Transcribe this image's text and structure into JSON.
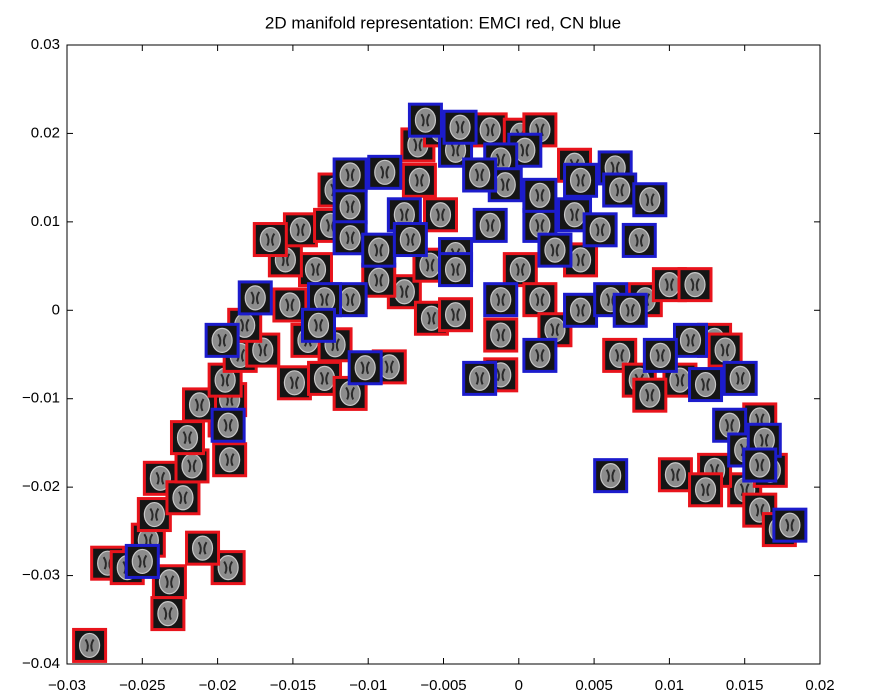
{
  "chart_data": {
    "type": "scatter",
    "title": "2D manifold representation: EMCI red, CN blue",
    "xlim": [
      -0.03,
      0.02
    ],
    "ylim": [
      -0.04,
      0.03
    ],
    "xticks": [
      {
        "value": -0.03,
        "label": "−0.03"
      },
      {
        "value": -0.025,
        "label": "−0.025"
      },
      {
        "value": -0.02,
        "label": "−0.02"
      },
      {
        "value": -0.015,
        "label": "−0.015"
      },
      {
        "value": -0.01,
        "label": "−0.01"
      },
      {
        "value": -0.005,
        "label": "−0.005"
      },
      0,
      0.005,
      0.01,
      0.015,
      0.02
    ],
    "yticks": [
      {
        "value": -0.04,
        "label": "−0.04"
      },
      {
        "value": -0.03,
        "label": "−0.03"
      },
      {
        "value": -0.02,
        "label": "−0.02"
      },
      {
        "value": -0.01,
        "label": "−0.01"
      },
      0,
      0.01,
      0.02,
      0.03
    ],
    "series": [
      {
        "color": "#e8141c",
        "x": [
          -0.0285,
          -0.0273,
          -0.026,
          -0.0232,
          -0.0233,
          -0.0193,
          -0.021,
          -0.0246,
          -0.0242,
          -0.0238,
          -0.0223,
          -0.0217,
          -0.022,
          -0.0192,
          -0.0195,
          -0.0192,
          -0.0212,
          -0.0195,
          -0.0185,
          -0.017,
          -0.0182,
          -0.0149,
          -0.0129,
          -0.0112,
          -0.0086,
          -0.0076,
          -0.0093,
          -0.0152,
          -0.0135,
          -0.0155,
          -0.0145,
          -0.0125,
          -0.0122,
          -0.0052,
          -0.0066,
          -0.0067,
          -0.0052,
          -0.0019,
          0.0001,
          0.0014,
          -0.0059,
          -0.0058,
          -0.0042,
          -0.0012,
          -0.0012,
          0.0001,
          0.0014,
          0.0024,
          0.0037,
          0.0041,
          0.0084,
          0.01,
          0.0117,
          0.013,
          0.0067,
          0.008,
          0.0107,
          0.0087,
          0.0137,
          0.015,
          0.016,
          0.0173,
          0.013,
          0.0104,
          0.0124,
          -0.014,
          -0.0165,
          0.016,
          0.0167,
          -0.0122
        ],
        "y": [
          -0.0379,
          -0.0286,
          -0.0291,
          -0.0307,
          -0.0343,
          -0.0291,
          -0.0269,
          -0.026,
          -0.0231,
          -0.019,
          -0.0212,
          -0.0176,
          -0.0144,
          -0.0169,
          -0.0124,
          -0.0101,
          -0.0107,
          -0.0079,
          -0.0051,
          -0.0045,
          -0.0017,
          -0.0082,
          -0.0077,
          -0.0094,
          -0.0064,
          0.0021,
          0.0034,
          0.0006,
          0.0046,
          0.0057,
          0.0091,
          0.0096,
          0.0136,
          0.0108,
          0.0147,
          0.0187,
          0.0204,
          0.0204,
          0.0198,
          0.0204,
          0.0051,
          -0.0009,
          -0.0005,
          -0.0028,
          -0.0073,
          0.0046,
          0.0012,
          -0.0022,
          0.0164,
          0.0057,
          0.0012,
          0.0029,
          0.0029,
          -0.0034,
          -0.0051,
          -0.0079,
          -0.0079,
          -0.0096,
          -0.0045,
          -0.0203,
          -0.0226,
          -0.0248,
          -0.0181,
          -0.0186,
          -0.0203,
          -0.0034,
          0.008,
          -0.0124,
          -0.0181,
          -0.0039
        ]
      },
      {
        "color": "#1c1ccc",
        "x": [
          -0.025,
          -0.0197,
          -0.0175,
          -0.0193,
          -0.0102,
          -0.0112,
          -0.0129,
          -0.0133,
          -0.0112,
          -0.0112,
          -0.0112,
          -0.0089,
          -0.0076,
          -0.0093,
          -0.0042,
          -0.0062,
          -0.0039,
          0.0004,
          -0.0012,
          -0.0009,
          -0.0026,
          -0.0019,
          -0.0042,
          -0.0042,
          -0.0072,
          -0.0012,
          -0.0026,
          0.0014,
          0.0014,
          0.0014,
          0.0041,
          0.0064,
          0.0067,
          0.0037,
          0.0024,
          0.0054,
          0.008,
          0.0087,
          0.0041,
          0.0061,
          0.0074,
          0.0114,
          0.0094,
          0.0124,
          0.0147,
          0.014,
          0.015,
          0.0163,
          0.016,
          0.018,
          0.0061
        ],
        "y": [
          -0.0284,
          -0.0034,
          0.0014,
          -0.013,
          -0.0065,
          0.0012,
          0.0012,
          -0.0017,
          0.0153,
          0.0117,
          0.0082,
          0.0156,
          0.0108,
          0.0068,
          0.0181,
          0.0215,
          0.0207,
          0.0181,
          0.017,
          0.0142,
          0.0153,
          0.0096,
          0.0063,
          0.0046,
          0.008,
          0.0012,
          -0.0077,
          -0.0051,
          0.0096,
          0.013,
          0.0147,
          0.0161,
          0.0136,
          0.0108,
          0.0068,
          0.0091,
          0.0079,
          0.0125,
          0.0,
          0.0012,
          0.0,
          -0.0034,
          -0.0051,
          -0.0084,
          -0.0077,
          -0.013,
          -0.0158,
          -0.0147,
          -0.0175,
          -0.0243,
          -0.0187
        ]
      }
    ]
  }
}
